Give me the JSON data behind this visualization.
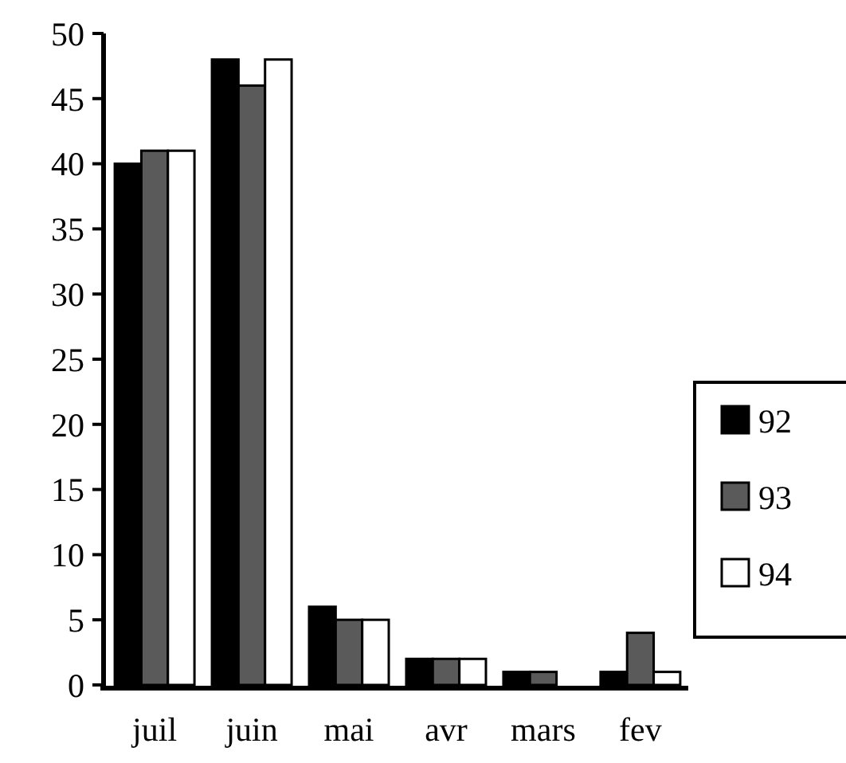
{
  "chart_data": {
    "type": "bar",
    "categories": [
      "juil",
      "juin",
      "mai",
      "avr",
      "mars",
      "fev"
    ],
    "series": [
      {
        "name": "92",
        "color": "#000000",
        "values": [
          40,
          48,
          6,
          2,
          1,
          1
        ]
      },
      {
        "name": "93",
        "color": "#5a5a5a",
        "values": [
          41,
          46,
          5,
          2,
          1,
          4
        ]
      },
      {
        "name": "94",
        "color": "#ffffff",
        "values": [
          41,
          48,
          5,
          2,
          0,
          1
        ]
      }
    ],
    "ylim": [
      0,
      50
    ],
    "yticks": [
      0,
      5,
      10,
      15,
      20,
      25,
      30,
      35,
      40,
      45,
      50
    ],
    "grid": false,
    "legend": "right"
  }
}
